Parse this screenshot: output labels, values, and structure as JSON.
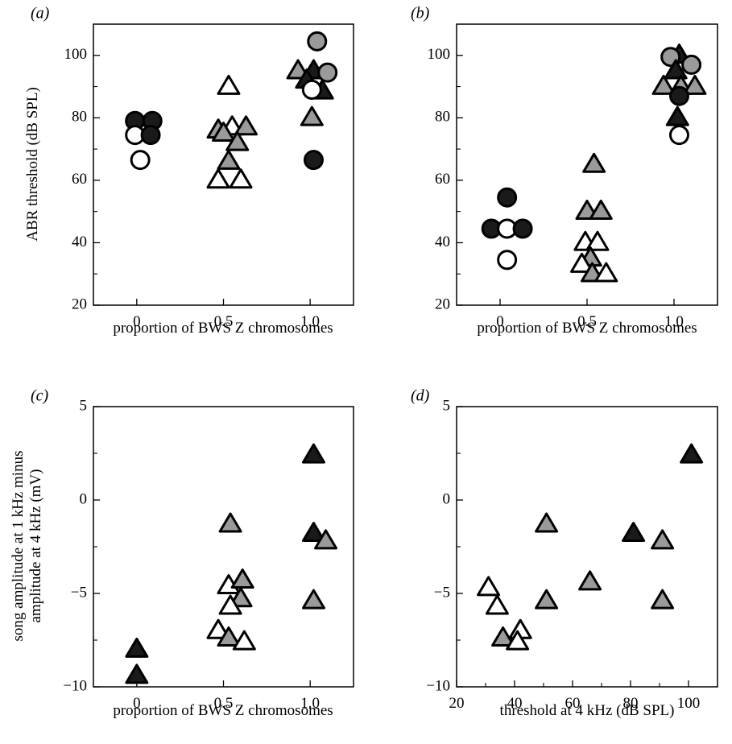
{
  "colors": {
    "filled": "#1a1a1a",
    "gray": "#9a9a9a",
    "open": "#ffffff",
    "stroke": "#000000"
  },
  "chart_data": [
    {
      "id": "a",
      "type": "scatter",
      "panel_label": "(a)",
      "xlabel": "proportion of BWS Z chromosomes",
      "ylabel": "ABR threshold (dB SPL)",
      "xlim": [
        -0.25,
        1.25
      ],
      "ylim": [
        20,
        110
      ],
      "xticks": [
        0,
        0.5,
        1.0
      ],
      "xtick_labels": [
        "0",
        "0.5",
        "1.0"
      ],
      "yticks": [
        20,
        40,
        60,
        80,
        100
      ],
      "ytick_labels": [
        "20",
        "40",
        "60",
        "80",
        "100"
      ],
      "points": [
        {
          "x": -0.01,
          "y": 79,
          "marker": "circle",
          "fill": "filled"
        },
        {
          "x": 0.09,
          "y": 79,
          "marker": "circle",
          "fill": "filled"
        },
        {
          "x": -0.01,
          "y": 74.5,
          "marker": "circle",
          "fill": "open"
        },
        {
          "x": 0.08,
          "y": 74.5,
          "marker": "circle",
          "fill": "filled"
        },
        {
          "x": 0.02,
          "y": 66.5,
          "marker": "circle",
          "fill": "open"
        },
        {
          "x": 0.53,
          "y": 90,
          "marker": "triangle",
          "fill": "open"
        },
        {
          "x": 0.47,
          "y": 76,
          "marker": "triangle",
          "fill": "gray"
        },
        {
          "x": 0.55,
          "y": 77,
          "marker": "triangle",
          "fill": "open"
        },
        {
          "x": 0.63,
          "y": 77,
          "marker": "triangle",
          "fill": "gray"
        },
        {
          "x": 0.5,
          "y": 75,
          "marker": "triangle",
          "fill": "gray"
        },
        {
          "x": 0.58,
          "y": 72,
          "marker": "triangle",
          "fill": "gray"
        },
        {
          "x": 0.53,
          "y": 66,
          "marker": "triangle",
          "fill": "gray"
        },
        {
          "x": 0.47,
          "y": 60,
          "marker": "triangle",
          "fill": "open"
        },
        {
          "x": 0.6,
          "y": 60,
          "marker": "triangle",
          "fill": "open"
        },
        {
          "x": 1.04,
          "y": 104.5,
          "marker": "circle",
          "fill": "gray"
        },
        {
          "x": 0.93,
          "y": 95,
          "marker": "triangle",
          "fill": "gray"
        },
        {
          "x": 1.02,
          "y": 95,
          "marker": "triangle",
          "fill": "filled"
        },
        {
          "x": 1.1,
          "y": 94.5,
          "marker": "circle",
          "fill": "gray"
        },
        {
          "x": 0.98,
          "y": 92,
          "marker": "triangle",
          "fill": "filled"
        },
        {
          "x": 1.07,
          "y": 88.5,
          "marker": "triangle",
          "fill": "filled"
        },
        {
          "x": 1.01,
          "y": 89,
          "marker": "circle",
          "fill": "open"
        },
        {
          "x": 1.01,
          "y": 80,
          "marker": "triangle",
          "fill": "gray"
        },
        {
          "x": 1.02,
          "y": 66.5,
          "marker": "circle",
          "fill": "filled"
        }
      ]
    },
    {
      "id": "b",
      "type": "scatter",
      "panel_label": "(b)",
      "xlabel": "proportion of BWS Z chromosomes",
      "ylabel": "",
      "xlim": [
        -0.25,
        1.25
      ],
      "ylim": [
        20,
        110
      ],
      "xticks": [
        0,
        0.5,
        1.0
      ],
      "xtick_labels": [
        "0",
        "0.5",
        "1.0"
      ],
      "yticks": [
        20,
        40,
        60,
        80,
        100
      ],
      "ytick_labels": [
        "20",
        "40",
        "60",
        "80",
        "100"
      ],
      "points": [
        {
          "x": 0.04,
          "y": 54.5,
          "marker": "circle",
          "fill": "filled"
        },
        {
          "x": -0.05,
          "y": 44.5,
          "marker": "circle",
          "fill": "filled"
        },
        {
          "x": 0.04,
          "y": 44.5,
          "marker": "circle",
          "fill": "open"
        },
        {
          "x": 0.13,
          "y": 44.5,
          "marker": "circle",
          "fill": "filled"
        },
        {
          "x": 0.04,
          "y": 34.5,
          "marker": "circle",
          "fill": "open"
        },
        {
          "x": 0.54,
          "y": 65,
          "marker": "triangle",
          "fill": "gray"
        },
        {
          "x": 0.5,
          "y": 50,
          "marker": "triangle",
          "fill": "gray"
        },
        {
          "x": 0.58,
          "y": 50,
          "marker": "triangle",
          "fill": "gray"
        },
        {
          "x": 0.49,
          "y": 40,
          "marker": "triangle",
          "fill": "open"
        },
        {
          "x": 0.56,
          "y": 40,
          "marker": "triangle",
          "fill": "open"
        },
        {
          "x": 0.52,
          "y": 35,
          "marker": "triangle",
          "fill": "gray"
        },
        {
          "x": 0.47,
          "y": 33,
          "marker": "triangle",
          "fill": "open"
        },
        {
          "x": 0.53,
          "y": 30,
          "marker": "triangle",
          "fill": "gray"
        },
        {
          "x": 0.61,
          "y": 30,
          "marker": "triangle",
          "fill": "open"
        },
        {
          "x": 1.03,
          "y": 100,
          "marker": "triangle",
          "fill": "filled"
        },
        {
          "x": 0.98,
          "y": 99.5,
          "marker": "circle",
          "fill": "gray"
        },
        {
          "x": 1.1,
          "y": 97,
          "marker": "circle",
          "fill": "gray"
        },
        {
          "x": 1.01,
          "y": 95,
          "marker": "triangle",
          "fill": "filled"
        },
        {
          "x": 0.94,
          "y": 90,
          "marker": "triangle",
          "fill": "gray"
        },
        {
          "x": 1.04,
          "y": 90,
          "marker": "triangle",
          "fill": "gray"
        },
        {
          "x": 1.12,
          "y": 90,
          "marker": "triangle",
          "fill": "gray"
        },
        {
          "x": 1.03,
          "y": 87,
          "marker": "circle",
          "fill": "filled"
        },
        {
          "x": 1.02,
          "y": 80,
          "marker": "triangle",
          "fill": "filled"
        },
        {
          "x": 1.03,
          "y": 74.5,
          "marker": "circle",
          "fill": "open"
        }
      ]
    },
    {
      "id": "c",
      "type": "scatter",
      "panel_label": "(c)",
      "xlabel": "proportion of BWS Z chromosomes",
      "ylabel_lines": [
        "song amplitude at 1 kHz minus",
        "amplitude at 4 kHz (mV)"
      ],
      "xlim": [
        -0.25,
        1.25
      ],
      "ylim": [
        -10,
        5
      ],
      "xticks": [
        0,
        0.5,
        1.0
      ],
      "xtick_labels": [
        "0",
        "0.5",
        "1.0"
      ],
      "yticks": [
        -10,
        -5,
        0,
        5
      ],
      "ytick_labels": [
        "−10",
        "−5",
        "0",
        "5"
      ],
      "points": [
        {
          "x": 0.0,
          "y": -8.0,
          "marker": "triangle",
          "fill": "filled"
        },
        {
          "x": 0.0,
          "y": -9.4,
          "marker": "triangle",
          "fill": "filled"
        },
        {
          "x": 0.54,
          "y": -1.3,
          "marker": "triangle",
          "fill": "gray"
        },
        {
          "x": 0.53,
          "y": -4.6,
          "marker": "triangle",
          "fill": "open"
        },
        {
          "x": 0.61,
          "y": -4.3,
          "marker": "triangle",
          "fill": "gray"
        },
        {
          "x": 0.6,
          "y": -5.3,
          "marker": "triangle",
          "fill": "gray"
        },
        {
          "x": 0.54,
          "y": -5.7,
          "marker": "triangle",
          "fill": "open"
        },
        {
          "x": 0.47,
          "y": -7.0,
          "marker": "triangle",
          "fill": "open"
        },
        {
          "x": 0.53,
          "y": -7.4,
          "marker": "triangle",
          "fill": "gray"
        },
        {
          "x": 0.62,
          "y": -7.6,
          "marker": "triangle",
          "fill": "open"
        },
        {
          "x": 1.02,
          "y": 2.4,
          "marker": "triangle",
          "fill": "filled"
        },
        {
          "x": 1.02,
          "y": -1.8,
          "marker": "triangle",
          "fill": "filled"
        },
        {
          "x": 1.09,
          "y": -2.2,
          "marker": "triangle",
          "fill": "gray"
        },
        {
          "x": 1.02,
          "y": -5.4,
          "marker": "triangle",
          "fill": "gray"
        }
      ]
    },
    {
      "id": "d",
      "type": "scatter",
      "panel_label": "(d)",
      "xlabel": "threshold at 4 kHz (dB SPL)",
      "ylabel": "",
      "xlim": [
        20,
        110
      ],
      "ylim": [
        -10,
        5
      ],
      "xticks": [
        20,
        40,
        60,
        80,
        100
      ],
      "xtick_labels": [
        "20",
        "40",
        "60",
        "80",
        "100"
      ],
      "yticks": [
        -10,
        -5,
        0,
        5
      ],
      "ytick_labels": [
        "−10",
        "−5",
        "0",
        "5"
      ],
      "points": [
        {
          "x": 101,
          "y": 2.4,
          "marker": "triangle",
          "fill": "filled"
        },
        {
          "x": 51,
          "y": -1.3,
          "marker": "triangle",
          "fill": "gray"
        },
        {
          "x": 81,
          "y": -1.8,
          "marker": "triangle",
          "fill": "filled"
        },
        {
          "x": 91,
          "y": -2.2,
          "marker": "triangle",
          "fill": "gray"
        },
        {
          "x": 31,
          "y": -4.7,
          "marker": "triangle",
          "fill": "open"
        },
        {
          "x": 66,
          "y": -4.4,
          "marker": "triangle",
          "fill": "gray"
        },
        {
          "x": 51,
          "y": -5.4,
          "marker": "triangle",
          "fill": "gray"
        },
        {
          "x": 91,
          "y": -5.4,
          "marker": "triangle",
          "fill": "gray"
        },
        {
          "x": 34,
          "y": -5.7,
          "marker": "triangle",
          "fill": "open"
        },
        {
          "x": 42,
          "y": -7.0,
          "marker": "triangle",
          "fill": "open"
        },
        {
          "x": 36,
          "y": -7.4,
          "marker": "triangle",
          "fill": "gray"
        },
        {
          "x": 41,
          "y": -7.6,
          "marker": "triangle",
          "fill": "open"
        }
      ]
    }
  ]
}
